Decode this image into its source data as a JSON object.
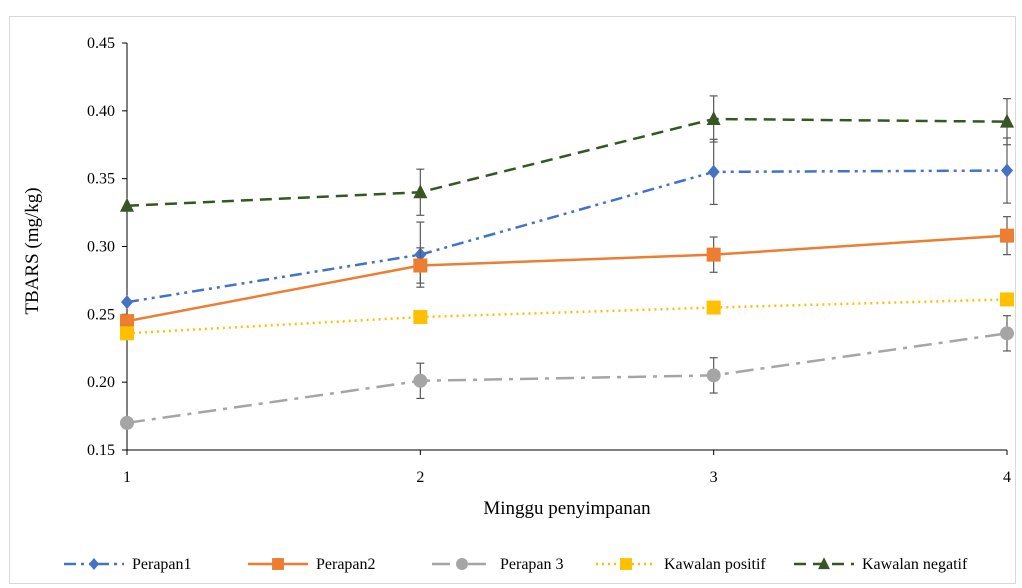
{
  "chart_data": {
    "type": "line",
    "xlabel": "Minggu penyimpanan",
    "ylabel": "TBARS (mg/kg)",
    "categories": [
      "1",
      "2",
      "3",
      "4"
    ],
    "ylim": [
      0.15,
      0.45
    ],
    "yticks": [
      "0.15",
      "0.20",
      "0.25",
      "0.30",
      "0.35",
      "0.40",
      "0.45"
    ],
    "grid": false,
    "legend_position": "bottom",
    "series": [
      {
        "name": "Perapan1",
        "values": [
          0.259,
          0.294,
          0.355,
          0.356
        ],
        "errors": [
          0.0,
          0.024,
          0.024,
          0.024
        ],
        "color": "#4472c4",
        "dash": "dash-dot-dot",
        "marker": "diamond"
      },
      {
        "name": "Perapan2",
        "values": [
          0.245,
          0.286,
          0.294,
          0.308
        ],
        "errors": [
          0.0,
          0.013,
          0.013,
          0.014
        ],
        "color": "#ed7d31",
        "dash": "solid",
        "marker": "square"
      },
      {
        "name": "Perapan 3",
        "values": [
          0.17,
          0.201,
          0.205,
          0.236
        ],
        "errors": [
          0.0,
          0.013,
          0.013,
          0.013
        ],
        "color": "#a5a5a5",
        "dash": "long-dash-dot",
        "marker": "circle"
      },
      {
        "name": "Kawalan positif",
        "values": [
          0.236,
          0.248,
          0.255,
          0.261
        ],
        "errors": [
          0.0,
          0.0,
          0.0,
          0.0
        ],
        "color": "#ffc000",
        "dash": "dotted",
        "marker": "square"
      },
      {
        "name": "Kawalan negatif",
        "values": [
          0.33,
          0.34,
          0.394,
          0.392
        ],
        "errors": [
          0.0,
          0.017,
          0.017,
          0.017
        ],
        "color": "#375623",
        "dash": "dashed",
        "marker": "triangle"
      }
    ]
  }
}
